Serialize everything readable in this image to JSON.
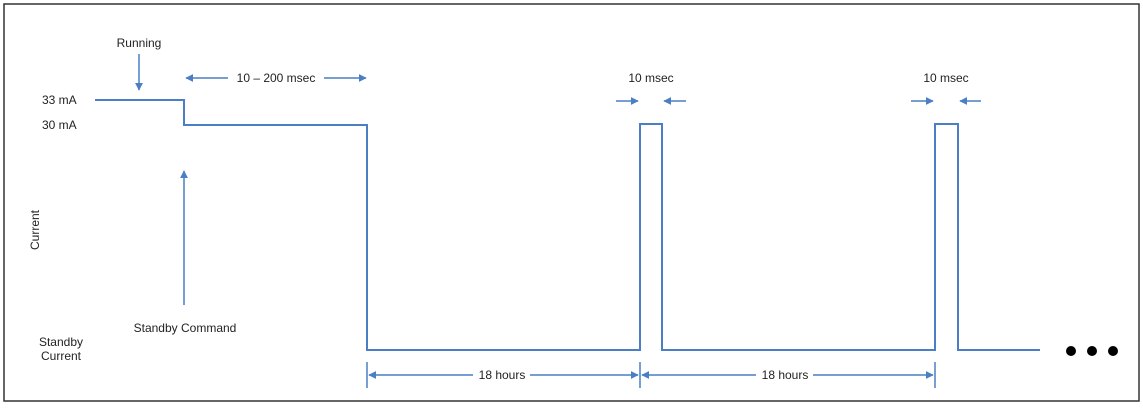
{
  "labels": {
    "running": "Running",
    "level_high": "33 mA",
    "level_low": "30 mA",
    "axis_current": "Current",
    "standby_current_line1": "Standby",
    "standby_current_line2": "Current",
    "standby_command": "Standby Command",
    "transition_time": "10 – 200 msec",
    "pulse1_width": "10 msec",
    "pulse2_width": "10 msec",
    "interval1": "18 hours",
    "interval2": "18 hours"
  },
  "continuation_dots": 3,
  "colors": {
    "waveform": "#4a7fc4",
    "text": "#222222",
    "frame": "#333333",
    "dots": "#000000"
  }
}
